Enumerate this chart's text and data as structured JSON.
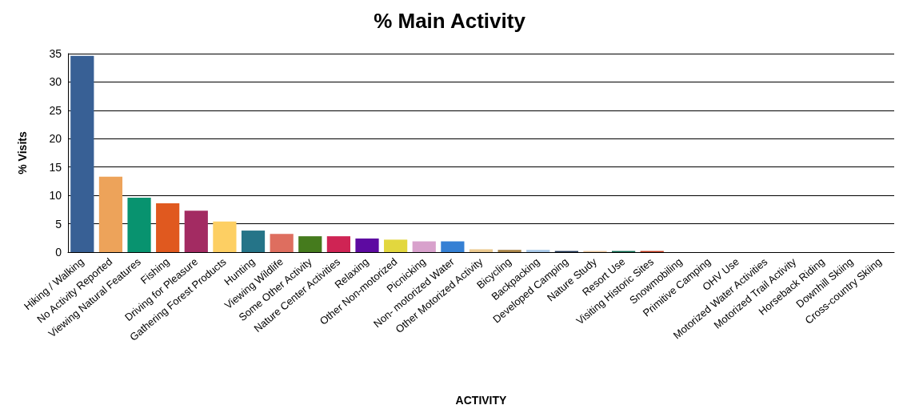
{
  "chart_data": {
    "type": "bar",
    "title": "% Main Activity",
    "xlabel": "ACTIVITY",
    "ylabel": "% Visits",
    "categories": [
      "Hiking / Walking",
      "No Activity Reported",
      "Viewing Natural Features",
      "Fishing",
      "Driving for Pleasure",
      "Gathering Forest Products",
      "Hunting",
      "Viewing Wildlife",
      "Some Other Activity",
      "Nature Center Activities",
      "Relaxing",
      "Other Non-motorized",
      "Picnicking",
      "Non- motorized Water",
      "Other Motorized Activity",
      "Bicycling",
      "Backpacking",
      "Developed Camping",
      "Nature Study",
      "Resort Use",
      "Visiting Historic Sites",
      "Snowmobiling",
      "Primitive Camping",
      "OHV Use",
      "Motorized Water Activities",
      "Motorized Trail Activity",
      "Horseback Riding",
      "Downhill Skiing",
      "Cross-country Skiing"
    ],
    "values": [
      34.6,
      13.3,
      9.6,
      8.6,
      7.3,
      5.4,
      3.8,
      3.2,
      2.8,
      2.8,
      2.4,
      2.2,
      1.9,
      1.9,
      0.5,
      0.4,
      0.4,
      0.2,
      0.2,
      0.2,
      0.2,
      0,
      0,
      0,
      0,
      0,
      0,
      0,
      0
    ],
    "colors": [
      "#386095",
      "#eda35a",
      "#08936f",
      "#e0591f",
      "#a32b62",
      "#fdcf63",
      "#257488",
      "#de6e5f",
      "#457b1d",
      "#cf2454",
      "#5d0aa1",
      "#e2d73e",
      "#d8a1cc",
      "#3580d4",
      "#ebc98f",
      "#a98448",
      "#a8c8e8",
      "#1e3555",
      "#e8c49a",
      "#0c6b50",
      "#c0391c",
      "#888888",
      "#888888",
      "#888888",
      "#888888",
      "#888888",
      "#888888",
      "#888888",
      "#888888"
    ],
    "ylim": [
      0,
      35
    ],
    "yticks": [
      0,
      5,
      10,
      15,
      20,
      25,
      30,
      35
    ],
    "grid": "y"
  }
}
